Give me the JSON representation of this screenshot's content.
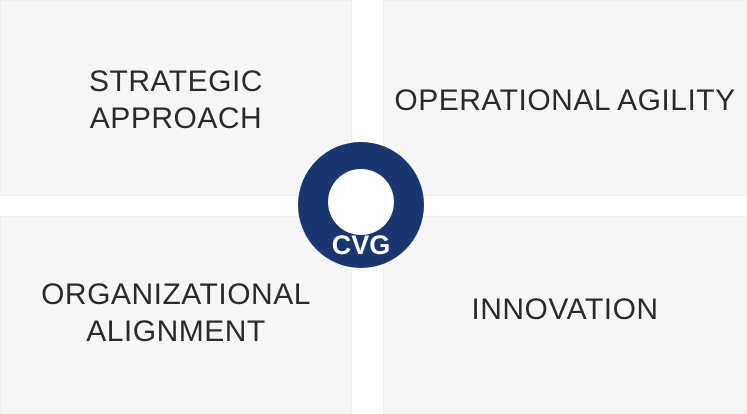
{
  "quadrants": {
    "top_left": {
      "label": "STRATEGIC\nAPPROACH"
    },
    "top_right": {
      "label": "OPERATIONAL AGILITY"
    },
    "bottom_left": {
      "label": "ORGANIZATIONAL\nALIGNMENT"
    },
    "bottom_right": {
      "label": "INNOVATION"
    }
  },
  "logo": {
    "text": "CVG",
    "color": "#1a3670",
    "ring_color": "#ffffff"
  }
}
